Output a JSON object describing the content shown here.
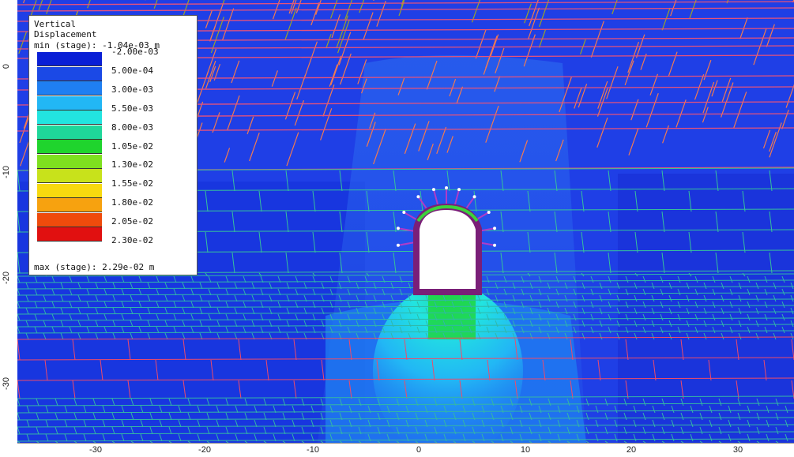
{
  "legend": {
    "title_line1": "Vertical",
    "title_line2": "Displacement",
    "min_text": "min (stage): -1.04e-03 m",
    "max_text": "max (stage): 2.29e-02 m",
    "labels": [
      "-2.00e-03",
      "5.00e-04",
      "3.00e-03",
      "5.50e-03",
      "8.00e-03",
      "1.05e-02",
      "1.30e-02",
      "1.55e-02",
      "1.80e-02",
      "2.05e-02",
      "2.30e-02"
    ],
    "colors": [
      "#0a1fd6",
      "#1b49e6",
      "#1f7ff2",
      "#22b7f5",
      "#22e4e0",
      "#1fd79a",
      "#1fd42d",
      "#7ee01f",
      "#c8e21b",
      "#f7d90f",
      "#f7a20f",
      "#ef4b0c",
      "#e11010"
    ]
  },
  "axes": {
    "x_ticks": [
      "-30",
      "-20",
      "-10",
      "0",
      "10",
      "20",
      "30"
    ],
    "y_ticks": [
      "0",
      "-10",
      "-20",
      "-30"
    ]
  }
}
